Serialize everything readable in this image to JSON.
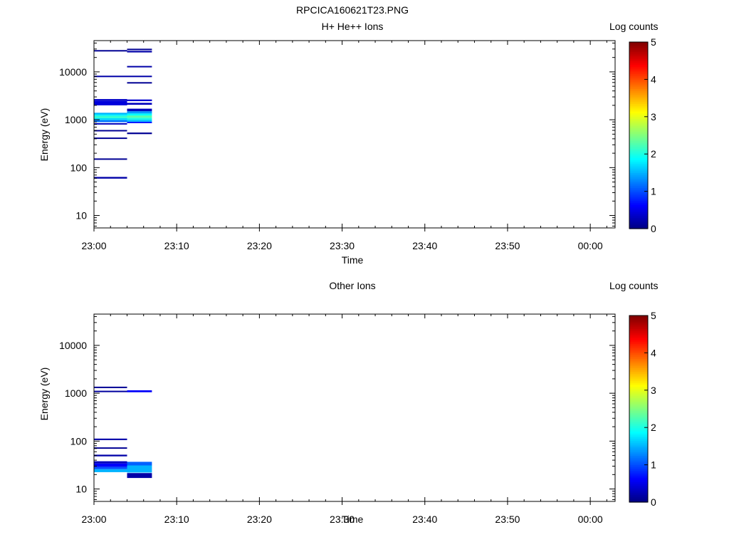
{
  "figure_title": "RPCICA160621T23.PNG",
  "chart_data": [
    {
      "type": "heatmap",
      "title": "H+ He++ Ions",
      "xlabel": "Time",
      "ylabel": "Energy (eV)",
      "x_ticks": [
        "23:00",
        "23:10",
        "23:20",
        "23:30",
        "23:40",
        "23:50",
        "00:00"
      ],
      "x_range": [
        "23:00",
        "00:03"
      ],
      "y_scale": "log",
      "y_ticks": [
        10,
        100,
        1000,
        10000
      ],
      "y_range": [
        5.5,
        45000
      ],
      "colorbar": {
        "label": "Log counts",
        "min": 0,
        "max": 5,
        "ticks": [
          0,
          1,
          2,
          3,
          4,
          5
        ]
      },
      "cells": [
        {
          "t0": "23:00",
          "t1": "23:04",
          "e0": 27000,
          "e1": 28500,
          "log_counts": 0.1
        },
        {
          "t0": "23:00",
          "t1": "23:04",
          "e0": 7800,
          "e1": 8300,
          "log_counts": 0.2
        },
        {
          "t0": "23:00",
          "t1": "23:04",
          "e0": 2500,
          "e1": 2700,
          "log_counts": 0.35
        },
        {
          "t0": "23:00",
          "t1": "23:04",
          "e0": 2000,
          "e1": 2500,
          "log_counts": 0.45
        },
        {
          "t0": "23:00",
          "t1": "23:04",
          "e0": 1300,
          "e1": 1400,
          "log_counts": 1.5
        },
        {
          "t0": "23:00",
          "t1": "23:04",
          "e0": 1200,
          "e1": 1300,
          "log_counts": 1.8
        },
        {
          "t0": "23:00",
          "t1": "23:04",
          "e0": 1080,
          "e1": 1200,
          "log_counts": 2.1
        },
        {
          "t0": "23:00",
          "t1": "23:04",
          "e0": 980,
          "e1": 1080,
          "log_counts": 1.7
        },
        {
          "t0": "23:00",
          "t1": "23:04",
          "e0": 890,
          "e1": 980,
          "log_counts": 1.2
        },
        {
          "t0": "23:00",
          "t1": "23:04",
          "e0": 800,
          "e1": 850,
          "log_counts": 0.3
        },
        {
          "t0": "23:00",
          "t1": "23:04",
          "e0": 570,
          "e1": 610,
          "log_counts": 0.1
        },
        {
          "t0": "23:00",
          "t1": "23:04",
          "e0": 400,
          "e1": 425,
          "log_counts": 0.1
        },
        {
          "t0": "23:00",
          "t1": "23:04",
          "e0": 147,
          "e1": 156,
          "log_counts": 0.1
        },
        {
          "t0": "23:00",
          "t1": "23:04",
          "e0": 59,
          "e1": 64,
          "log_counts": 0.2
        },
        {
          "t0": "23:04",
          "t1": "23:07",
          "e0": 29000,
          "e1": 30500,
          "log_counts": 0.1
        },
        {
          "t0": "23:04",
          "t1": "23:07",
          "e0": 25500,
          "e1": 27500,
          "log_counts": 0.2
        },
        {
          "t0": "23:04",
          "t1": "23:07",
          "e0": 12500,
          "e1": 13300,
          "log_counts": 0.2
        },
        {
          "t0": "23:04",
          "t1": "23:07",
          "e0": 7800,
          "e1": 8300,
          "log_counts": 0.2
        },
        {
          "t0": "23:04",
          "t1": "23:07",
          "e0": 5700,
          "e1": 6100,
          "log_counts": 0.1
        },
        {
          "t0": "23:04",
          "t1": "23:07",
          "e0": 2450,
          "e1": 2650,
          "log_counts": 0.4
        },
        {
          "t0": "23:04",
          "t1": "23:07",
          "e0": 2050,
          "e1": 2250,
          "log_counts": 0.3
        },
        {
          "t0": "23:04",
          "t1": "23:07",
          "e0": 1500,
          "e1": 1700,
          "log_counts": 0.3
        },
        {
          "t0": "23:04",
          "t1": "23:07",
          "e0": 1350,
          "e1": 1500,
          "log_counts": 1.4
        },
        {
          "t0": "23:04",
          "t1": "23:07",
          "e0": 1220,
          "e1": 1350,
          "log_counts": 1.9
        },
        {
          "t0": "23:04",
          "t1": "23:07",
          "e0": 1100,
          "e1": 1220,
          "log_counts": 2.3
        },
        {
          "t0": "23:04",
          "t1": "23:07",
          "e0": 1000,
          "e1": 1100,
          "log_counts": 2.0
        },
        {
          "t0": "23:04",
          "t1": "23:07",
          "e0": 910,
          "e1": 1000,
          "log_counts": 1.6
        },
        {
          "t0": "23:04",
          "t1": "23:07",
          "e0": 860,
          "e1": 910,
          "log_counts": 0.7
        },
        {
          "t0": "23:04",
          "t1": "23:07",
          "e0": 500,
          "e1": 540,
          "log_counts": 0.1
        }
      ]
    },
    {
      "type": "heatmap",
      "title": "Other Ions",
      "xlabel": "Time",
      "ylabel": "Energy (eV)",
      "x_ticks": [
        "23:00",
        "23:10",
        "23:20",
        "23:30",
        "23:40",
        "23:50",
        "00:00"
      ],
      "x_range": [
        "23:00",
        "00:03"
      ],
      "y_scale": "log",
      "y_ticks": [
        10,
        100,
        1000,
        10000
      ],
      "y_range": [
        5.5,
        45000
      ],
      "colorbar": {
        "label": "Log counts",
        "min": 0,
        "max": 5,
        "ticks": [
          0,
          1,
          2,
          3,
          4,
          5
        ]
      },
      "cells": [
        {
          "t0": "23:00",
          "t1": "23:04",
          "e0": 1280,
          "e1": 1370,
          "log_counts": 0.1
        },
        {
          "t0": "23:00",
          "t1": "23:04",
          "e0": 1060,
          "e1": 1130,
          "log_counts": 0.15
        },
        {
          "t0": "23:00",
          "t1": "23:04",
          "e0": 105,
          "e1": 113,
          "log_counts": 0.2
        },
        {
          "t0": "23:00",
          "t1": "23:04",
          "e0": 69,
          "e1": 74,
          "log_counts": 0.1
        },
        {
          "t0": "23:00",
          "t1": "23:04",
          "e0": 48,
          "e1": 52,
          "log_counts": 0.2
        },
        {
          "t0": "23:00",
          "t1": "23:04",
          "e0": 34,
          "e1": 38,
          "log_counts": 0.3
        },
        {
          "t0": "23:00",
          "t1": "23:04",
          "e0": 29,
          "e1": 34,
          "log_counts": 0.6
        },
        {
          "t0": "23:00",
          "t1": "23:04",
          "e0": 26,
          "e1": 29,
          "log_counts": 1.0
        },
        {
          "t0": "23:00",
          "t1": "23:04",
          "e0": 22.5,
          "e1": 26,
          "log_counts": 1.5
        },
        {
          "t0": "23:04",
          "t1": "23:07",
          "e0": 1050,
          "e1": 1150,
          "log_counts": 0.6
        },
        {
          "t0": "23:04",
          "t1": "23:07",
          "e0": 31,
          "e1": 37,
          "log_counts": 1.1
        },
        {
          "t0": "23:04",
          "t1": "23:07",
          "e0": 22,
          "e1": 31,
          "log_counts": 1.5
        },
        {
          "t0": "23:04",
          "t1": "23:07",
          "e0": 17,
          "e1": 21.5,
          "log_counts": 0.2
        }
      ]
    }
  ]
}
